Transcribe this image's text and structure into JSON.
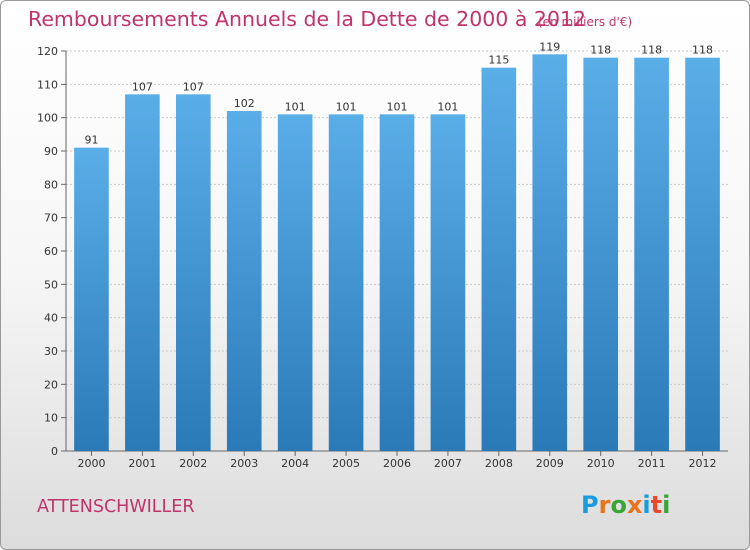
{
  "title": "Remboursements Annuels de la Dette de 2000 à 2012",
  "unit_note": "(en milliers d'€)",
  "city": "ATTENSCHWILLER",
  "logo": {
    "letters": [
      "P",
      "r",
      "o",
      "x",
      "i",
      "t",
      "i"
    ],
    "colors": [
      "#1a9be0",
      "#e8731c",
      "#3aa535",
      "#e8731c",
      "#1a9be0",
      "#e84a2b",
      "#3aa535"
    ]
  },
  "colors": {
    "accent": "#c0336b",
    "bar_top": "#5aaee8",
    "bar_bottom": "#2a7ab8"
  },
  "chart_data": {
    "type": "bar",
    "categories": [
      "2000",
      "2001",
      "2002",
      "2003",
      "2004",
      "2005",
      "2006",
      "2007",
      "2008",
      "2009",
      "2010",
      "2011",
      "2012"
    ],
    "values": [
      91,
      107,
      107,
      102,
      101,
      101,
      101,
      101,
      115,
      119,
      118,
      118,
      118
    ],
    "ylim": [
      0,
      120
    ],
    "yticks": [
      0,
      10,
      20,
      30,
      40,
      50,
      60,
      70,
      80,
      90,
      100,
      110,
      120
    ],
    "grid": true,
    "data_labels": true
  }
}
